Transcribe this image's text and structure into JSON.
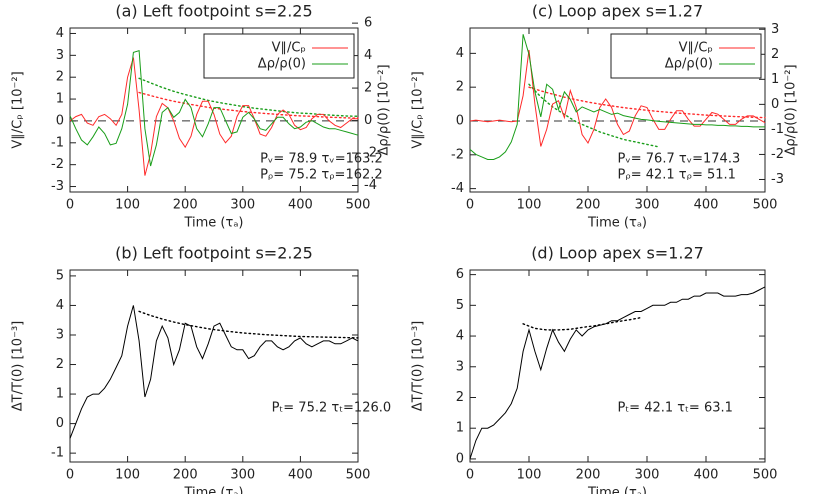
{
  "chart_data": [
    {
      "type": "line",
      "title": "(a) Left footpoint s=2.25",
      "xlabel": "Time (τₐ)",
      "ylabel": "V∥/Cₚ [10⁻²]",
      "y2label": "Δρ/ρ(0) [10⁻²]",
      "xlim": [
        0,
        500
      ],
      "xticks": [
        0,
        100,
        200,
        300,
        400,
        500
      ],
      "ylim": [
        -3.25,
        4.25
      ],
      "yticks": [
        -3,
        -2,
        -1,
        0,
        1,
        2,
        3,
        4
      ],
      "y2lim": [
        -4.4,
        5.7
      ],
      "y2ticks": [
        -4,
        -2,
        0,
        2,
        4,
        6
      ],
      "hline": {
        "y": 0,
        "style": "dashed"
      },
      "legend": "upper right",
      "x": [
        0,
        10,
        20,
        30,
        40,
        50,
        60,
        70,
        80,
        90,
        100,
        110,
        120,
        130,
        140,
        150,
        160,
        170,
        180,
        190,
        200,
        210,
        220,
        230,
        240,
        250,
        260,
        270,
        280,
        290,
        300,
        310,
        320,
        330,
        340,
        350,
        360,
        370,
        380,
        390,
        400,
        410,
        420,
        430,
        440,
        450,
        460,
        470,
        480,
        490,
        500
      ],
      "series": [
        {
          "name": "V∥/Cₚ",
          "color": "#ff2a2a",
          "values": [
            0,
            0.2,
            0.3,
            -0.1,
            -0.2,
            0.2,
            0.3,
            0.1,
            -0.2,
            0.3,
            2.0,
            2.9,
            0.5,
            -2.5,
            -1.5,
            0.2,
            0.8,
            0.6,
            0,
            -0.8,
            -1.2,
            -0.7,
            0.3,
            0.9,
            0.9,
            0.3,
            -0.6,
            -1.0,
            -0.7,
            0.2,
            0.7,
            0.7,
            0.1,
            -0.6,
            -0.7,
            -0.3,
            0.3,
            0.5,
            0.3,
            -0.2,
            -0.4,
            -0.3,
            0.1,
            0.3,
            0.3,
            0,
            -0.2,
            -0.3,
            -0.1,
            0.1,
            0.1
          ]
        },
        {
          "name": "Δρ/ρ(0)",
          "color": "#1a9e1a",
          "axis": "y2",
          "values": [
            0.3,
            -0.5,
            -1.2,
            -1.5,
            -1.0,
            -0.4,
            -0.8,
            -1.5,
            -1.4,
            -0.5,
            1.0,
            4.2,
            4.3,
            -0.5,
            -2.8,
            -1.5,
            0.5,
            0.8,
            0.2,
            0.5,
            1.3,
            0.8,
            -0.5,
            -1.0,
            -0.2,
            0.8,
            0.8,
            0,
            -0.8,
            -0.7,
            0.2,
            0.5,
            0.1,
            -0.5,
            -0.6,
            -0.2,
            0.2,
            0.2,
            -0.2,
            -0.5,
            -0.4,
            -0.1,
            0,
            -0.2,
            -0.4,
            -0.5,
            -0.5,
            -0.6,
            -0.7,
            -0.8,
            -0.9
          ]
        }
      ],
      "fits": [
        {
          "color": "#ff2a2a",
          "style": "dotted",
          "x": [
            120,
            140,
            160,
            180,
            200,
            220,
            240,
            260,
            280,
            300,
            320,
            340,
            360,
            380,
            400,
            420,
            440,
            460,
            480,
            500
          ],
          "values": [
            1.3,
            1.16,
            1.02,
            0.9,
            0.8,
            0.71,
            0.62,
            0.55,
            0.49,
            0.43,
            0.38,
            0.34,
            0.3,
            0.26,
            0.23,
            0.21,
            0.18,
            0.16,
            0.14,
            0.13
          ]
        },
        {
          "color": "#1a9e1a",
          "style": "dotted",
          "axis": "y2",
          "x": [
            120,
            140,
            160,
            180,
            200,
            220,
            240,
            260,
            280,
            300,
            320,
            340,
            360,
            380,
            400,
            420,
            440,
            460,
            480,
            500
          ],
          "values": [
            2.6,
            2.32,
            2.04,
            1.8,
            1.6,
            1.42,
            1.24,
            1.1,
            0.98,
            0.86,
            0.76,
            0.68,
            0.6,
            0.52,
            0.46,
            0.42,
            0.36,
            0.32,
            0.28,
            0.26
          ]
        }
      ],
      "annotations": [
        "Pᵥ= 78.9 τᵥ=163.2",
        "Pᵨ= 75.2 τᵨ=162.2"
      ]
    },
    {
      "type": "line",
      "title": "(c) Loop apex s=1.27",
      "xlabel": "Time (τₐ)",
      "ylabel": "V∥/Cₚ [10⁻²]",
      "y2label": "Δρ/ρ(0) [10⁻²]",
      "xlim": [
        0,
        500
      ],
      "xticks": [
        0,
        100,
        200,
        300,
        400,
        500
      ],
      "ylim": [
        -4.2,
        5.5
      ],
      "yticks": [
        -4,
        -2,
        0,
        2,
        4
      ],
      "y2lim": [
        -3.5,
        3.05
      ],
      "y2ticks": [
        -3,
        -2,
        -1,
        0,
        1,
        2,
        3
      ],
      "hline": {
        "y": 0,
        "style": "dashed"
      },
      "legend": "upper right",
      "x": [
        0,
        10,
        20,
        30,
        40,
        50,
        60,
        70,
        80,
        90,
        100,
        110,
        120,
        130,
        140,
        150,
        160,
        170,
        180,
        190,
        200,
        210,
        220,
        230,
        240,
        250,
        260,
        270,
        280,
        290,
        300,
        310,
        320,
        330,
        340,
        350,
        360,
        370,
        380,
        390,
        400,
        410,
        420,
        430,
        440,
        450,
        460,
        470,
        480,
        490,
        500
      ],
      "series": [
        {
          "name": "V∥/Cₚ",
          "color": "#ff2a2a",
          "values": [
            0,
            0.05,
            0,
            -0.05,
            0,
            0.05,
            0,
            -0.05,
            0,
            1.5,
            4.2,
            1.0,
            -1.5,
            -0.5,
            1.0,
            1.2,
            0.2,
            1.8,
            0.8,
            -0.8,
            -1.3,
            -0.5,
            0.8,
            1.3,
            0.8,
            -0.2,
            -0.8,
            -0.6,
            0.3,
            0.9,
            0.8,
            0.1,
            -0.5,
            -0.5,
            0.1,
            0.6,
            0.6,
            0.1,
            -0.3,
            -0.3,
            0.1,
            0.5,
            0.4,
            0.1,
            -0.2,
            -0.2,
            0.1,
            0.3,
            0.3,
            0.1,
            -0.1
          ]
        },
        {
          "name": "Δρ/ρ(0)",
          "color": "#1a9e1a",
          "axis": "y2",
          "values": [
            -1.8,
            -2.0,
            -2.1,
            -2.2,
            -2.2,
            -2.1,
            -1.9,
            -1.5,
            -0.8,
            2.8,
            2.0,
            0.5,
            -0.5,
            0.8,
            0.6,
            -0.2,
            0.5,
            0.2,
            -0.3,
            -0.1,
            -0.2,
            -0.3,
            -0.2,
            -0.3,
            -0.4,
            -0.35,
            -0.45,
            -0.5,
            -0.55,
            -0.6,
            -0.62,
            -0.65,
            -0.68,
            -0.7,
            -0.72,
            -0.74,
            -0.76,
            -0.78,
            -0.8,
            -0.8,
            -0.82,
            -0.82,
            -0.84,
            -0.84,
            -0.86,
            -0.86,
            -0.88,
            -0.88,
            -0.9,
            -0.9,
            -0.9
          ]
        }
      ],
      "fits": [
        {
          "color": "#ff2a2a",
          "style": "dotted",
          "x": [
            100,
            120,
            140,
            160,
            180,
            200,
            220,
            240,
            260,
            280,
            300,
            320,
            340,
            360,
            380,
            400,
            420,
            440,
            460,
            480,
            500
          ],
          "values": [
            2.0,
            1.78,
            1.59,
            1.41,
            1.26,
            1.12,
            1.0,
            0.89,
            0.79,
            0.71,
            0.63,
            0.56,
            0.5,
            0.45,
            0.4,
            0.35,
            0.31,
            0.28,
            0.25,
            0.22,
            0.2
          ]
        },
        {
          "color": "#1a9e1a",
          "style": "dotted",
          "axis": "y2",
          "x": [
            100,
            120,
            140,
            160,
            180,
            200,
            220,
            240,
            260,
            280,
            300,
            320
          ],
          "values": [
            0.8,
            0.3,
            -0.1,
            -0.4,
            -0.7,
            -0.9,
            -1.1,
            -1.25,
            -1.4,
            -1.5,
            -1.6,
            -1.7
          ]
        }
      ],
      "annotations": [
        "Pᵥ= 76.7 τᵥ=174.3",
        "Pᵨ= 42.1 τᵨ= 51.1"
      ]
    },
    {
      "type": "line",
      "title": "(b) Left footpoint s=2.25",
      "xlabel": "Time (τₐ)",
      "ylabel": "ΔT/T(0) [10⁻³]",
      "xlim": [
        0,
        500
      ],
      "xticks": [
        0,
        100,
        200,
        300,
        400,
        500
      ],
      "ylim": [
        -1.3,
        5.2
      ],
      "yticks": [
        -1,
        0,
        1,
        2,
        3,
        4,
        5
      ],
      "x": [
        0,
        10,
        20,
        30,
        40,
        50,
        60,
        70,
        80,
        90,
        100,
        110,
        120,
        130,
        140,
        150,
        160,
        170,
        180,
        190,
        200,
        210,
        220,
        230,
        240,
        250,
        260,
        270,
        280,
        290,
        300,
        310,
        320,
        330,
        340,
        350,
        360,
        370,
        380,
        390,
        400,
        410,
        420,
        430,
        440,
        450,
        460,
        470,
        480,
        490,
        500
      ],
      "series": [
        {
          "color": "#000000",
          "values": [
            -0.5,
            0.0,
            0.5,
            0.9,
            1.0,
            1.0,
            1.2,
            1.5,
            1.9,
            2.3,
            3.3,
            4.0,
            2.8,
            0.9,
            1.5,
            2.8,
            3.3,
            2.9,
            2.0,
            2.5,
            3.4,
            3.3,
            2.6,
            2.2,
            2.7,
            3.3,
            3.4,
            3.0,
            2.6,
            2.5,
            2.5,
            2.2,
            2.3,
            2.6,
            2.8,
            2.8,
            2.6,
            2.5,
            2.6,
            2.8,
            2.9,
            2.7,
            2.6,
            2.7,
            2.8,
            2.8,
            2.7,
            2.7,
            2.8,
            2.9,
            2.8
          ]
        }
      ],
      "fits": [
        {
          "color": "#000000",
          "style": "dotted",
          "x": [
            120,
            140,
            160,
            180,
            200,
            220,
            240,
            260,
            280,
            300,
            320,
            340,
            360,
            380,
            400,
            420,
            440,
            460,
            480,
            500
          ],
          "values": [
            3.8,
            3.66,
            3.54,
            3.44,
            3.35,
            3.28,
            3.21,
            3.16,
            3.11,
            3.07,
            3.04,
            3.01,
            2.99,
            2.97,
            2.95,
            2.94,
            2.93,
            2.92,
            2.91,
            2.9
          ]
        }
      ],
      "annotations": [
        "Pₜ= 75.2 τₜ=126.0"
      ]
    },
    {
      "type": "line",
      "title": "(d) Loop apex s=1.27",
      "xlabel": "Time (τₐ)",
      "ylabel": "ΔT/T(0) [10⁻³]",
      "xlim": [
        0,
        500
      ],
      "xticks": [
        0,
        100,
        200,
        300,
        400,
        500
      ],
      "ylim": [
        -0.1,
        6.15
      ],
      "yticks": [
        0,
        1,
        2,
        3,
        4,
        5,
        6
      ],
      "x": [
        0,
        10,
        20,
        30,
        40,
        50,
        60,
        70,
        80,
        90,
        100,
        110,
        120,
        130,
        140,
        150,
        160,
        170,
        180,
        190,
        200,
        210,
        220,
        230,
        240,
        250,
        260,
        270,
        280,
        290,
        300,
        310,
        320,
        330,
        340,
        350,
        360,
        370,
        380,
        390,
        400,
        410,
        420,
        430,
        440,
        450,
        460,
        470,
        480,
        490,
        500
      ],
      "series": [
        {
          "color": "#000000",
          "values": [
            0.0,
            0.6,
            1.0,
            1.0,
            1.1,
            1.3,
            1.5,
            1.8,
            2.3,
            3.5,
            4.2,
            3.5,
            2.9,
            3.6,
            4.2,
            3.8,
            3.5,
            3.9,
            4.2,
            4.0,
            4.2,
            4.3,
            4.35,
            4.4,
            4.5,
            4.5,
            4.6,
            4.7,
            4.8,
            4.8,
            4.9,
            5.0,
            5.0,
            5.0,
            5.1,
            5.1,
            5.2,
            5.2,
            5.3,
            5.3,
            5.4,
            5.4,
            5.4,
            5.3,
            5.3,
            5.3,
            5.35,
            5.35,
            5.4,
            5.5,
            5.6
          ]
        }
      ],
      "fits": [
        {
          "color": "#000000",
          "style": "dotted",
          "x": [
            90,
            110,
            130,
            150,
            170,
            190,
            210,
            230,
            250,
            270,
            290
          ],
          "values": [
            4.4,
            4.25,
            4.2,
            4.2,
            4.22,
            4.28,
            4.33,
            4.4,
            4.47,
            4.53,
            4.6
          ]
        }
      ],
      "annotations": [
        "Pₜ= 42.1 τₜ= 63.1"
      ]
    }
  ]
}
